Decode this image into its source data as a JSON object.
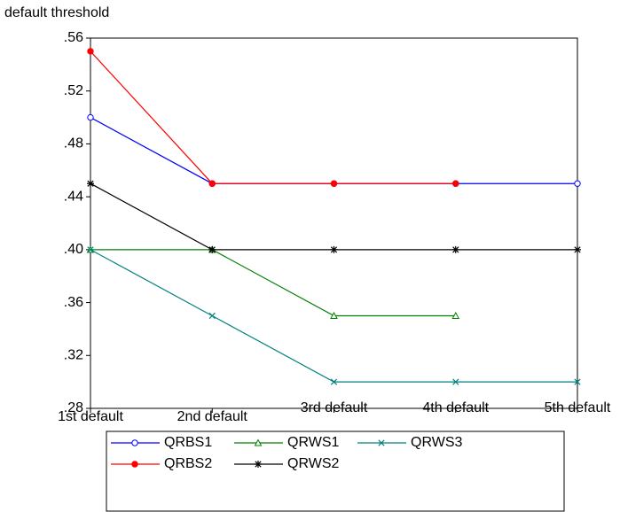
{
  "chart_data": {
    "type": "line",
    "y_label": "default threshold",
    "categories": [
      "1st default",
      "2nd default",
      "3rd default",
      "4th default",
      "5th default"
    ],
    "ylim": [
      0.28,
      0.56
    ],
    "yticks": [
      {
        "value": 0.28,
        "label": ".28"
      },
      {
        "value": 0.32,
        "label": ".32"
      },
      {
        "value": 0.36,
        "label": ".36"
      },
      {
        "value": 0.4,
        "label": ".40"
      },
      {
        "value": 0.44,
        "label": ".44"
      },
      {
        "value": 0.48,
        "label": ".48"
      },
      {
        "value": 0.52,
        "label": ".52"
      },
      {
        "value": 0.56,
        "label": ".56"
      }
    ],
    "grid": false,
    "legend": "bottom",
    "series": [
      {
        "name": "QRBS1",
        "color": "#0000ff",
        "marker": "circle-open",
        "values": [
          0.5,
          0.45,
          0.45,
          0.45,
          0.45
        ]
      },
      {
        "name": "QRBS2",
        "color": "#ff0000",
        "marker": "circle",
        "values": [
          0.55,
          0.45,
          0.45,
          0.45,
          null
        ]
      },
      {
        "name": "QRWS1",
        "color": "#008000",
        "marker": "triangle",
        "values": [
          0.4,
          0.4,
          0.35,
          0.35,
          null
        ]
      },
      {
        "name": "QRWS2",
        "color": "#000000",
        "marker": "star",
        "values": [
          0.45,
          0.4,
          0.4,
          0.4,
          0.4
        ]
      },
      {
        "name": "QRWS3",
        "color": "#008080",
        "marker": "x",
        "values": [
          0.4,
          0.35,
          0.3,
          0.3,
          0.3
        ]
      }
    ]
  }
}
